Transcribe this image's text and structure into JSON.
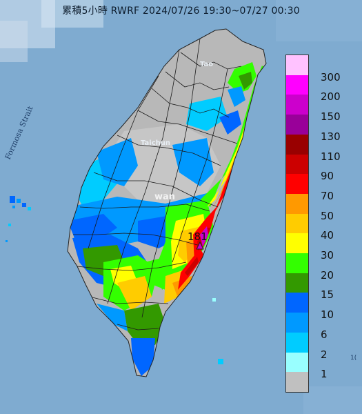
{
  "header": {
    "title": "累積5小時 RWRF 2024/07/26 19:30~07/27 00:30"
  },
  "map": {
    "strait_label": "Formosa Strait",
    "place_labels": {
      "taoyuan": "Tao",
      "taichung": "Taichun",
      "taiwan": "wan"
    },
    "max_value": "181",
    "edge_mark": "1("
  },
  "legend": {
    "levels": [
      {
        "label": "300",
        "color": "#ffc2ff"
      },
      {
        "label": "200",
        "color": "#ff00ff"
      },
      {
        "label": "150",
        "color": "#cc00cc"
      },
      {
        "label": "130",
        "color": "#990099"
      },
      {
        "label": "110",
        "color": "#990000"
      },
      {
        "label": "90",
        "color": "#cc0000"
      },
      {
        "label": "70",
        "color": "#ff0000"
      },
      {
        "label": "50",
        "color": "#ff9900"
      },
      {
        "label": "40",
        "color": "#ffcc00"
      },
      {
        "label": "30",
        "color": "#ffff00"
      },
      {
        "label": "20",
        "color": "#33ff00"
      },
      {
        "label": "15",
        "color": "#339900"
      },
      {
        "label": "10",
        "color": "#0066ff"
      },
      {
        "label": "6",
        "color": "#0099ff"
      },
      {
        "label": "2",
        "color": "#00ccff"
      },
      {
        "label": "1",
        "color": "#99ffff"
      },
      {
        "label": "",
        "color": "#c0c0c0"
      }
    ]
  }
}
